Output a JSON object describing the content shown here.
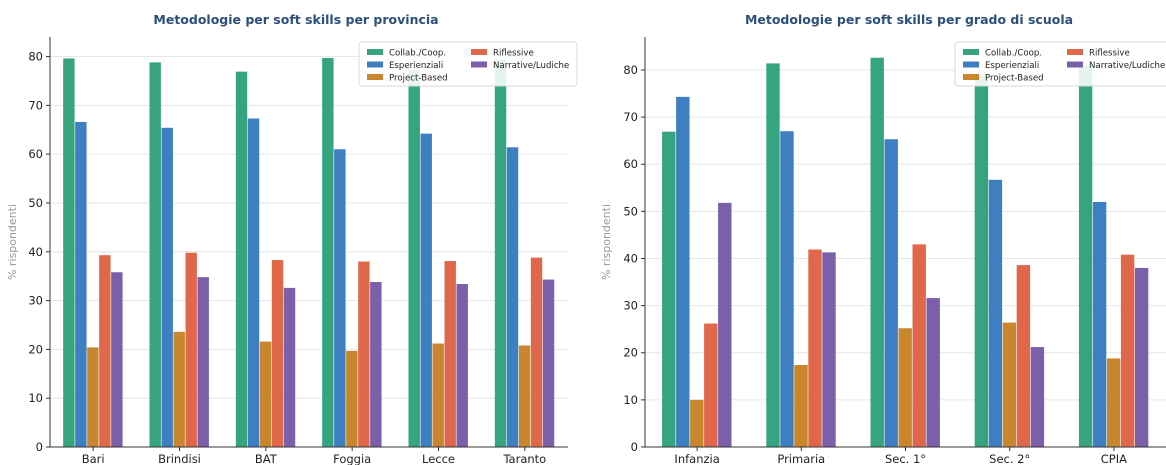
{
  "chart_data": [
    {
      "type": "bar",
      "title": "Metodologie per soft skills per provincia",
      "xlabel": "",
      "ylabel": "% rispondenti",
      "ylim": [
        0,
        84
      ],
      "yticks": [
        0,
        10,
        20,
        30,
        40,
        50,
        60,
        70,
        80
      ],
      "grid": "y",
      "legend_position": "top-right",
      "categories": [
        "Bari",
        "Brindisi",
        "BAT",
        "Foggia",
        "Lecce",
        "Taranto"
      ],
      "series": [
        {
          "name": "Collab./Coop.",
          "color": "#35a47f",
          "values": [
            79.6,
            78.8,
            76.9,
            79.7,
            77.2,
            79.4
          ]
        },
        {
          "name": "Esperienziali",
          "color": "#3d7fc1",
          "values": [
            66.6,
            65.4,
            67.3,
            61.0,
            64.2,
            61.4
          ]
        },
        {
          "name": "Project-Based",
          "color": "#c8862f",
          "values": [
            20.4,
            23.6,
            21.6,
            19.7,
            21.2,
            20.8
          ]
        },
        {
          "name": "Riflessive",
          "color": "#e0684a",
          "values": [
            39.3,
            39.8,
            38.3,
            38.0,
            38.1,
            38.8
          ]
        },
        {
          "name": "Narrative/Ludiche",
          "color": "#7b5fa8",
          "values": [
            35.8,
            34.8,
            32.6,
            33.8,
            33.4,
            34.3
          ]
        }
      ]
    },
    {
      "type": "bar",
      "title": "Metodologie per soft skills per grado di scuola",
      "xlabel": "",
      "ylabel": "% rispondenti",
      "ylim": [
        0,
        87
      ],
      "yticks": [
        0,
        10,
        20,
        30,
        40,
        50,
        60,
        70,
        80
      ],
      "grid": "y",
      "legend_position": "top-right",
      "categories": [
        "Infanzia",
        "Primaria",
        "Sec. 1°",
        "Sec. 2°",
        "CPIA"
      ],
      "series": [
        {
          "name": "Collab./Coop.",
          "color": "#35a47f",
          "values": [
            66.9,
            81.4,
            82.6,
            79.0,
            81.0
          ]
        },
        {
          "name": "Esperienziali",
          "color": "#3d7fc1",
          "values": [
            74.3,
            67.0,
            65.3,
            56.7,
            52.0
          ]
        },
        {
          "name": "Project-Based",
          "color": "#c8862f",
          "values": [
            10.0,
            17.4,
            25.2,
            26.4,
            18.8
          ]
        },
        {
          "name": "Riflessive",
          "color": "#e0684a",
          "values": [
            26.2,
            41.9,
            43.0,
            38.6,
            40.8
          ]
        },
        {
          "name": "Narrative/Ludiche",
          "color": "#7b5fa8",
          "values": [
            51.8,
            41.3,
            31.6,
            21.2,
            38.0
          ]
        }
      ]
    }
  ]
}
